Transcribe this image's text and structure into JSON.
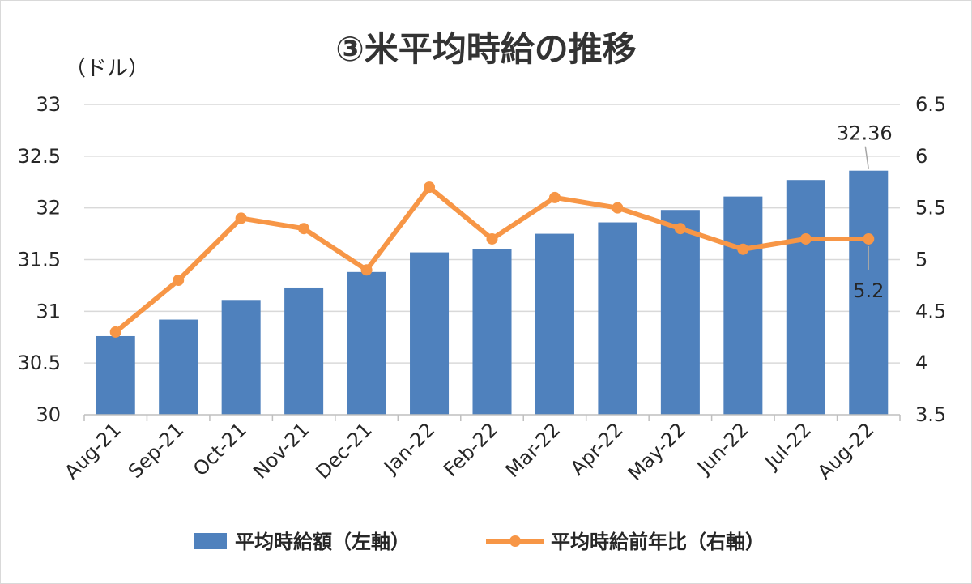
{
  "chart_data": {
    "type": "bar+line",
    "title": "③米平均時給の推移",
    "ylabel_left": "（ドル）",
    "categories": [
      "Aug-21",
      "Sep-21",
      "Oct-21",
      "Nov-21",
      "Dec-21",
      "Jan-22",
      "Feb-22",
      "Mar-22",
      "Apr-22",
      "May-22",
      "Jun-22",
      "Jul-22",
      "Aug-22"
    ],
    "series": [
      {
        "name": "平均時給額（左軸）",
        "type": "bar",
        "axis": "left",
        "color": "#4f81bd",
        "values": [
          30.76,
          30.92,
          31.11,
          31.23,
          31.38,
          31.57,
          31.6,
          31.75,
          31.86,
          31.98,
          32.11,
          32.27,
          32.36
        ]
      },
      {
        "name": "平均時給前年比（右軸）",
        "type": "line",
        "axis": "right",
        "color": "#f79646",
        "values": [
          4.3,
          4.8,
          5.4,
          5.3,
          4.9,
          5.7,
          5.2,
          5.6,
          5.5,
          5.3,
          5.1,
          5.2,
          5.2
        ]
      }
    ],
    "left_axis": {
      "min": 30,
      "max": 33,
      "step": 0.5,
      "ticks": [
        "30",
        "30.5",
        "31",
        "31.5",
        "32",
        "32.5",
        "33"
      ]
    },
    "right_axis": {
      "min": 3.5,
      "max": 6.5,
      "step": 0.5,
      "ticks": [
        "3.5",
        "4",
        "4.5",
        "5",
        "5.5",
        "6",
        "6.5"
      ]
    },
    "annotations": [
      {
        "series": 0,
        "index": 12,
        "label": "32.36"
      },
      {
        "series": 1,
        "index": 12,
        "label": "5.2"
      }
    ],
    "grid": true,
    "legend": "bottom"
  }
}
